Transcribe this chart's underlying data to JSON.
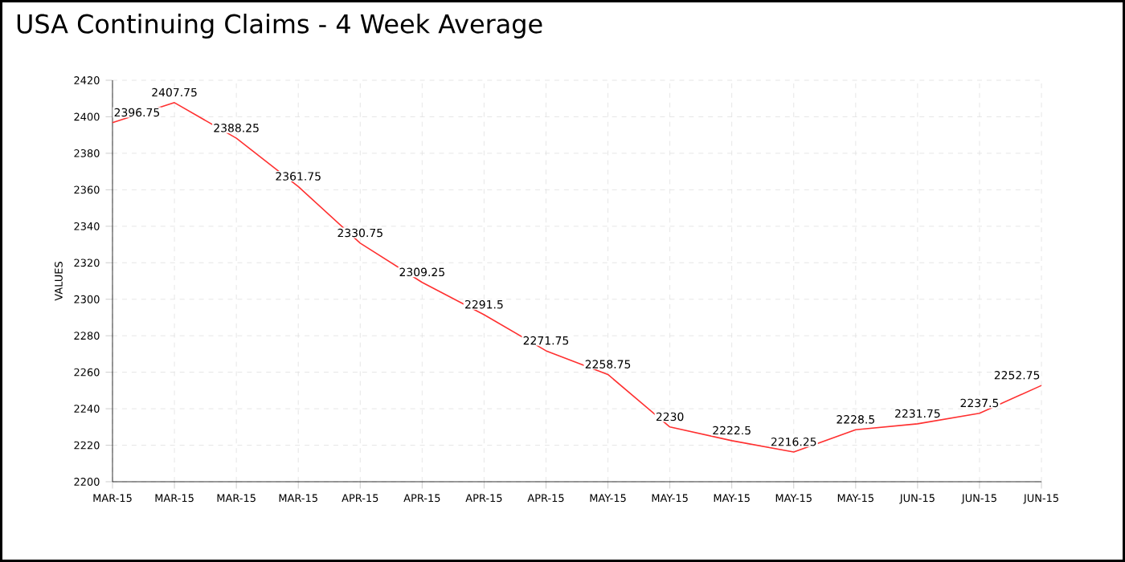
{
  "chart_data": {
    "type": "line",
    "title": "USA Continuing Claims - 4 Week Average",
    "ylabel": "VALUES",
    "categories": [
      "MAR-15",
      "MAR-15",
      "MAR-15",
      "MAR-15",
      "APR-15",
      "APR-15",
      "APR-15",
      "APR-15",
      "MAY-15",
      "MAY-15",
      "MAY-15",
      "MAY-15",
      "MAY-15",
      "JUN-15",
      "JUN-15",
      "JUN-15"
    ],
    "values": [
      2396.75,
      2407.75,
      2388.25,
      2361.75,
      2330.75,
      2309.25,
      2291.5,
      2271.75,
      2258.75,
      2230,
      2222.5,
      2216.25,
      2228.5,
      2231.75,
      2237.5,
      2252.75
    ],
    "color": "#ff3030",
    "ylim": [
      2200,
      2420
    ],
    "yticks": [
      2200,
      2220,
      2240,
      2260,
      2280,
      2300,
      2320,
      2340,
      2360,
      2380,
      2400,
      2420
    ],
    "grid": true,
    "data_labels": true,
    "marker": "none",
    "line_style": "solid"
  }
}
